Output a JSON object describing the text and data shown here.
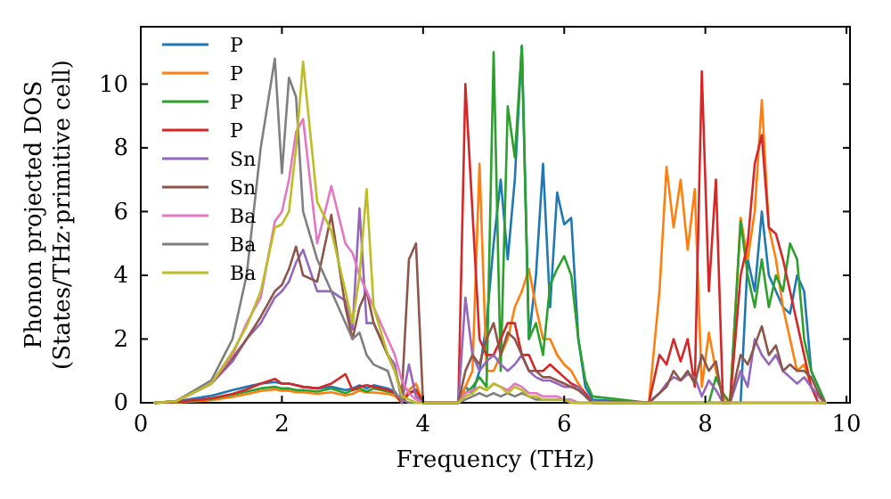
{
  "chart_data": {
    "type": "line",
    "xlabel": "Frequency (THz)",
    "ylabel": "Phonon projected DOS\n(States/THz·primitive cell)",
    "xlim": [
      0,
      10.05
    ],
    "xticks": [
      0,
      2,
      4,
      6,
      8,
      10
    ],
    "ylim": [
      0,
      11.8
    ],
    "yticks": [
      0,
      2,
      4,
      6,
      8,
      10
    ],
    "grid": false,
    "legend": "top left",
    "marker": "none",
    "line_style": "solid",
    "x": [
      0.2,
      0.5,
      1,
      1.3,
      1.5,
      1.7,
      1.9,
      2.0,
      2.1,
      2.2,
      2.3,
      2.5,
      2.7,
      2.9,
      3.0,
      3.1,
      3.2,
      3.3,
      3.5,
      3.6,
      3.7,
      3.8,
      3.9,
      4.0,
      4.5,
      4.6,
      4.7,
      4.8,
      4.9,
      5.0,
      5.1,
      5.2,
      5.3,
      5.4,
      5.5,
      5.6,
      5.7,
      5.8,
      5.9,
      6.0,
      6.1,
      6.2,
      6.3,
      6.4,
      7.2,
      7.35,
      7.45,
      7.55,
      7.65,
      7.75,
      7.85,
      7.95,
      8.05,
      8.15,
      8.25,
      8.35,
      8.5,
      8.6,
      8.7,
      8.8,
      8.9,
      9.0,
      9.1,
      9.2,
      9.3,
      9.4,
      9.5,
      9.6,
      9.7
    ],
    "series": [
      {
        "name": "P",
        "color": "#1f77b4",
        "values": [
          0,
          0.04,
          0.22,
          0.4,
          0.5,
          0.6,
          0.65,
          0.6,
          0.6,
          0.55,
          0.5,
          0.45,
          0.5,
          0.4,
          0.45,
          0.55,
          0.45,
          0.55,
          0.45,
          0.35,
          0,
          0.3,
          0.4,
          0,
          0,
          0.5,
          0.3,
          1,
          2.5,
          5,
          7,
          4.5,
          7,
          11.2,
          2,
          4,
          7.5,
          3,
          6.6,
          5.6,
          5.8,
          2,
          0.5,
          0.1,
          0,
          0,
          0,
          0,
          0,
          0,
          0,
          0,
          0,
          0,
          0,
          0,
          0,
          4.5,
          3.5,
          6,
          4,
          3.5,
          3,
          2.8,
          4,
          3.5,
          1,
          0.5,
          0
        ]
      },
      {
        "name": "P",
        "color": "#ff7f0e",
        "values": [
          0,
          0.01,
          0.08,
          0.18,
          0.27,
          0.37,
          0.42,
          0.38,
          0.38,
          0.33,
          0.33,
          0.28,
          0.33,
          0.23,
          0.28,
          0.38,
          0.32,
          0.32,
          0.28,
          0.22,
          0,
          0.4,
          0.6,
          0,
          0,
          0.5,
          1,
          7.5,
          1,
          1,
          1.5,
          2,
          3,
          3.5,
          4.2,
          3,
          2,
          2,
          1.5,
          1.2,
          1,
          0.6,
          0.3,
          0,
          0,
          3.5,
          7.4,
          5.5,
          7,
          4.8,
          6.7,
          0.5,
          2.2,
          1,
          0.2,
          0,
          5.8,
          4.5,
          6,
          9.5,
          5.5,
          4.5,
          3,
          2,
          1,
          1.2,
          0.5,
          0.2,
          0
        ]
      },
      {
        "name": "P",
        "color": "#2ca02c",
        "values": [
          0,
          0.02,
          0.12,
          0.25,
          0.35,
          0.45,
          0.5,
          0.45,
          0.45,
          0.4,
          0.4,
          0.35,
          0.45,
          0.3,
          0.4,
          0.45,
          0.35,
          0.45,
          0.35,
          0.3,
          0,
          0.3,
          0.4,
          0,
          0,
          0.3,
          0.5,
          0.8,
          0.5,
          11,
          1,
          9.3,
          7.7,
          11.2,
          2,
          2.5,
          1.5,
          3.7,
          4.2,
          4.6,
          4,
          2,
          0.7,
          0.2,
          0,
          0,
          0,
          0,
          0,
          0,
          0,
          0,
          0,
          0.8,
          0.3,
          0,
          5.7,
          4,
          3,
          4.5,
          3,
          4,
          3.5,
          5,
          4.5,
          2,
          1,
          0.5,
          0
        ]
      },
      {
        "name": "P",
        "color": "#d62728",
        "values": [
          0,
          0.02,
          0.14,
          0.28,
          0.42,
          0.6,
          0.75,
          0.6,
          0.6,
          0.55,
          0.5,
          0.45,
          0.6,
          0.9,
          0.4,
          0.5,
          0.55,
          0.5,
          0.4,
          0.3,
          0,
          0.3,
          0.4,
          0,
          0,
          10,
          6,
          2,
          1.5,
          1.5,
          2,
          2.5,
          2.5,
          1.5,
          1.5,
          1,
          1,
          1.2,
          1,
          0.8,
          0.6,
          0.5,
          0.3,
          0,
          0,
          1.5,
          1.2,
          2,
          1.3,
          2,
          0.5,
          10.4,
          3.5,
          7,
          0,
          0,
          4,
          5,
          7.5,
          8.4,
          5.5,
          5.3,
          4.5,
          3.5,
          2.5,
          1.5,
          0.5,
          0,
          0
        ]
      },
      {
        "name": "Sn",
        "color": "#9467bd",
        "values": [
          0,
          0.05,
          0.6,
          1.3,
          2,
          2.5,
          3.3,
          3.5,
          3.8,
          4.4,
          4.8,
          3.5,
          3.5,
          3.2,
          2.3,
          6.1,
          2.5,
          2.5,
          1.5,
          1.2,
          0,
          1.2,
          0.2,
          0,
          0,
          3.3,
          1.5,
          1,
          1.3,
          1.5,
          1.2,
          1,
          1.2,
          1.5,
          1,
          0.8,
          0.7,
          0.7,
          0.6,
          0.5,
          0.5,
          0.5,
          0.2,
          0,
          0,
          0.3,
          0.6,
          0.8,
          0.7,
          0.9,
          0.8,
          0.2,
          0.7,
          0.4,
          0,
          0,
          1,
          0.5,
          2,
          1.5,
          1.2,
          1.5,
          1,
          0.8,
          0.6,
          0.8,
          0.5,
          0.2,
          0
        ]
      },
      {
        "name": "Sn",
        "color": "#8c564b",
        "values": [
          0,
          0.05,
          0.6,
          1.4,
          2,
          2.7,
          3.5,
          3.7,
          4.2,
          4.9,
          4,
          3.8,
          5.9,
          3,
          2,
          3,
          3.5,
          2.5,
          1.5,
          1,
          0.3,
          4.5,
          5,
          0,
          0,
          1,
          1.5,
          1.2,
          2,
          2.5,
          1.5,
          2.2,
          2,
          1.5,
          1,
          1,
          0.8,
          0.8,
          0.7,
          0.6,
          0.5,
          0.4,
          0.2,
          0,
          0,
          0.3,
          0.5,
          1,
          0.7,
          1,
          0.6,
          1.5,
          1,
          1.3,
          0,
          0,
          1.5,
          1.2,
          1.8,
          2.4,
          1.5,
          1.8,
          1,
          1.2,
          1,
          1,
          0.8,
          0.3,
          0
        ]
      },
      {
        "name": "Ba",
        "color": "#e377c2",
        "values": [
          0,
          0.05,
          0.6,
          1.5,
          2.5,
          3.3,
          5.7,
          6,
          7,
          8.5,
          8.9,
          5,
          6.8,
          5,
          4.7,
          4,
          3.5,
          3,
          2,
          1.5,
          0.7,
          0.3,
          0.1,
          0,
          0,
          0.3,
          0.4,
          0.5,
          0.4,
          0.6,
          0.5,
          0.4,
          0.6,
          0.5,
          0.3,
          0.3,
          0.2,
          0.2,
          0.2,
          0.1,
          0.1,
          0,
          0,
          0,
          0,
          0,
          0,
          0,
          0,
          0,
          0,
          0,
          0,
          0,
          0,
          0,
          0,
          0,
          0,
          0,
          0,
          0,
          0,
          0,
          0,
          0,
          0,
          0,
          0
        ]
      },
      {
        "name": "Ba",
        "color": "#7f7f7f",
        "values": [
          0,
          0.05,
          0.7,
          2,
          4,
          8,
          10.8,
          7.2,
          10.2,
          9.6,
          6,
          4.5,
          3.5,
          2.5,
          2,
          2.2,
          1.5,
          1.2,
          1,
          0.3,
          0.1,
          0,
          0,
          0,
          0,
          0.1,
          0.2,
          0.3,
          0.2,
          0.3,
          0.2,
          0.3,
          0.2,
          0.3,
          0.2,
          0.1,
          0.1,
          0.1,
          0.1,
          0.1,
          0,
          0,
          0,
          0,
          0,
          0,
          0,
          0,
          0,
          0,
          0,
          0,
          0,
          0,
          0,
          0,
          0,
          0,
          0,
          0,
          0,
          0,
          0,
          0,
          0,
          0,
          0,
          0,
          0
        ]
      },
      {
        "name": "Ba",
        "color": "#bcbd22",
        "values": [
          0,
          0.05,
          0.6,
          1.6,
          2.4,
          3.5,
          5.5,
          5.6,
          6,
          8,
          10.7,
          6.3,
          5.4,
          3.5,
          2.5,
          4,
          6.7,
          3,
          1.5,
          1,
          0.2,
          0.1,
          0,
          0,
          0,
          0.2,
          0.3,
          0.5,
          0.4,
          0.6,
          0.5,
          0.3,
          0.5,
          0.4,
          0.2,
          0.2,
          0.1,
          0.1,
          0.1,
          0.1,
          0,
          0,
          0,
          0,
          0,
          0,
          0,
          0,
          0,
          0,
          0,
          0,
          0,
          0,
          0,
          0,
          0,
          0,
          0,
          0,
          0,
          0,
          0,
          0,
          0,
          0,
          0,
          0,
          0
        ]
      }
    ]
  }
}
